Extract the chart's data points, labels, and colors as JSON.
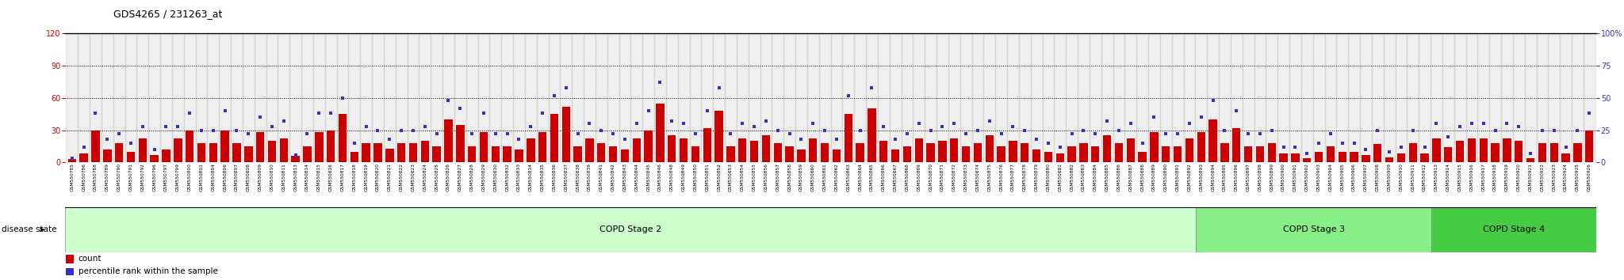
{
  "title": "GDS4265 / 231263_at",
  "left_ylim": [
    0,
    120
  ],
  "right_ylim": [
    0,
    100
  ],
  "left_yticks": [
    0,
    30,
    60,
    90,
    120
  ],
  "right_yticks": [
    0,
    25,
    50,
    75,
    100
  ],
  "right_yticklabels": [
    "0",
    "25",
    "50",
    "75",
    "100%"
  ],
  "bar_color": "#cc0000",
  "dot_color": "#3333cc",
  "samples": [
    "GSM550785",
    "GSM550786",
    "GSM550788",
    "GSM550789",
    "GSM550790",
    "GSM550791",
    "GSM550792",
    "GSM550796",
    "GSM550797",
    "GSM550799",
    "GSM550800",
    "GSM550801",
    "GSM550804",
    "GSM550806",
    "GSM550807",
    "GSM550808",
    "GSM550809",
    "GSM550810",
    "GSM550811",
    "GSM550813",
    "GSM550814",
    "GSM550815",
    "GSM550816",
    "GSM550817",
    "GSM550818",
    "GSM550819",
    "GSM550820",
    "GSM550821",
    "GSM550822",
    "GSM550823",
    "GSM550824",
    "GSM550825",
    "GSM550826",
    "GSM550827",
    "GSM550828",
    "GSM550829",
    "GSM550830",
    "GSM550832",
    "GSM550833",
    "GSM550834",
    "GSM550835",
    "GSM550836",
    "GSM550837",
    "GSM550838",
    "GSM550839",
    "GSM550841",
    "GSM550842",
    "GSM550843",
    "GSM550844",
    "GSM550845",
    "GSM550846",
    "GSM550848",
    "GSM550849",
    "GSM550850",
    "GSM550851",
    "GSM550852",
    "GSM550853",
    "GSM550854",
    "GSM550855",
    "GSM550856",
    "GSM550857",
    "GSM550858",
    "GSM550859",
    "GSM550860",
    "GSM550861",
    "GSM550862",
    "GSM550863",
    "GSM550864",
    "GSM550865",
    "GSM550866",
    "GSM550867",
    "GSM550868",
    "GSM550869",
    "GSM550870",
    "GSM550871",
    "GSM550872",
    "GSM550873",
    "GSM550874",
    "GSM550875",
    "GSM550876",
    "GSM550877",
    "GSM550878",
    "GSM550879",
    "GSM550880",
    "GSM550881",
    "GSM550882",
    "GSM550883",
    "GSM550884",
    "GSM550885",
    "GSM550886",
    "GSM550887",
    "GSM550888",
    "GSM550889",
    "GSM550890",
    "GSM550891",
    "GSM550892",
    "GSM550893",
    "GSM550894",
    "GSM550895",
    "GSM550896",
    "GSM550897",
    "GSM550898",
    "GSM550899",
    "GSM550900",
    "GSM550901",
    "GSM550902",
    "GSM550903",
    "GSM550904",
    "GSM550905",
    "GSM550906",
    "GSM550907",
    "GSM550908",
    "GSM550909",
    "GSM550910",
    "GSM550911",
    "GSM550912",
    "GSM550913",
    "GSM550914",
    "GSM550915",
    "GSM550916",
    "GSM550917",
    "GSM550918",
    "GSM550919",
    "GSM550920",
    "GSM550921",
    "GSM550922",
    "GSM550923",
    "GSM550924",
    "GSM550925",
    "GSM550926"
  ],
  "counts": [
    3,
    8,
    30,
    12,
    18,
    10,
    22,
    7,
    12,
    22,
    30,
    18,
    18,
    30,
    18,
    15,
    28,
    20,
    22,
    6,
    15,
    28,
    30,
    45,
    10,
    18,
    18,
    13,
    18,
    18,
    20,
    15,
    40,
    35,
    15,
    28,
    15,
    15,
    12,
    22,
    28,
    45,
    52,
    15,
    22,
    18,
    15,
    12,
    22,
    30,
    55,
    25,
    22,
    15,
    32,
    48,
    15,
    22,
    20,
    25,
    18,
    15,
    12,
    22,
    18,
    12,
    45,
    18,
    50,
    20,
    12,
    15,
    22,
    18,
    20,
    22,
    15,
    18,
    25,
    15,
    20,
    18,
    12,
    10,
    8,
    15,
    18,
    15,
    25,
    18,
    22,
    10,
    28,
    15,
    15,
    22,
    28,
    40,
    18,
    32,
    15,
    15,
    18,
    8,
    8,
    4,
    10,
    15,
    10,
    10,
    7,
    17,
    5,
    8,
    18,
    8,
    22,
    14,
    20,
    22,
    22,
    18,
    22,
    20,
    4,
    18,
    18,
    8,
    18,
    30
  ],
  "percentiles": [
    3,
    12,
    38,
    18,
    22,
    15,
    28,
    10,
    28,
    28,
    38,
    25,
    25,
    40,
    25,
    22,
    35,
    28,
    32,
    6,
    22,
    38,
    38,
    50,
    15,
    28,
    25,
    18,
    25,
    25,
    28,
    22,
    48,
    42,
    22,
    38,
    22,
    22,
    18,
    28,
    38,
    52,
    58,
    22,
    30,
    25,
    22,
    18,
    30,
    40,
    62,
    32,
    30,
    22,
    40,
    58,
    22,
    30,
    28,
    32,
    25,
    22,
    18,
    30,
    25,
    18,
    52,
    25,
    58,
    28,
    18,
    22,
    30,
    25,
    28,
    30,
    22,
    25,
    32,
    22,
    28,
    25,
    18,
    15,
    12,
    22,
    25,
    22,
    32,
    25,
    30,
    15,
    35,
    22,
    22,
    30,
    35,
    48,
    25,
    40,
    22,
    22,
    25,
    12,
    12,
    7,
    15,
    22,
    15,
    15,
    10,
    25,
    8,
    12,
    25,
    12,
    30,
    20,
    28,
    30,
    30,
    25,
    30,
    28,
    7,
    25,
    25,
    12,
    25,
    38
  ],
  "stage2_count": 96,
  "stage3_count": 20,
  "stage4_count": 14,
  "stage2_label": "COPD Stage 2",
  "stage3_label": "COPD Stage 3",
  "stage4_label": "COPD Stage 4",
  "disease_state_label": "disease state",
  "legend_count_label": "count",
  "legend_pct_label": "percentile rank within the sample"
}
